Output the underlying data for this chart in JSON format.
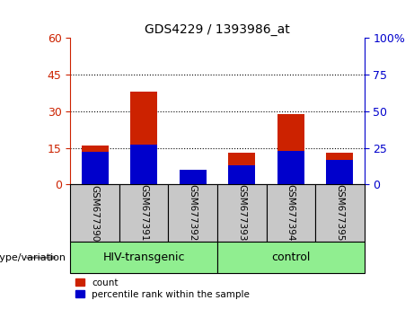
{
  "title": "GDS4229 / 1393986_at",
  "samples": [
    "GSM677390",
    "GSM677391",
    "GSM677392",
    "GSM677393",
    "GSM677394",
    "GSM677395"
  ],
  "count_values": [
    16,
    38,
    1,
    13,
    29,
    13
  ],
  "percentile_values": [
    22,
    27,
    10,
    13,
    23,
    17
  ],
  "left_ylim": [
    0,
    60
  ],
  "right_ylim": [
    0,
    100
  ],
  "left_yticks": [
    0,
    15,
    30,
    45,
    60
  ],
  "right_yticks": [
    0,
    25,
    50,
    75,
    100
  ],
  "left_ytick_labels": [
    "0",
    "15",
    "30",
    "45",
    "60"
  ],
  "right_ytick_labels": [
    "0",
    "25",
    "50",
    "75",
    "100%"
  ],
  "group_label": "genotype/variation",
  "groups": [
    {
      "label": "HIV-transgenic",
      "start": 0,
      "end": 2,
      "color": "#90EE90"
    },
    {
      "label": "control",
      "start": 3,
      "end": 5,
      "color": "#90EE90"
    }
  ],
  "count_color": "#CC2200",
  "percentile_color": "#0000CC",
  "bar_width": 0.55,
  "tick_bg_color": "#C8C8C8",
  "legend_count_label": "count",
  "legend_percentile_label": "percentile rank within the sample",
  "left_axis_color": "#CC2200",
  "right_axis_color": "#0000CC",
  "font_size": 9,
  "label_fontsize": 7.5
}
